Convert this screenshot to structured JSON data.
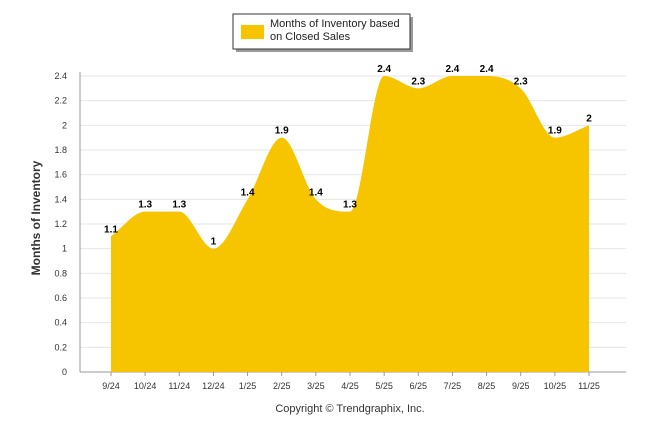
{
  "chart_data": {
    "type": "area",
    "categories": [
      "9/24",
      "10/24",
      "11/24",
      "12/24",
      "1/25",
      "2/25",
      "3/25",
      "4/25",
      "5/25",
      "6/25",
      "7/25",
      "8/25",
      "9/25",
      "10/25",
      "11/25"
    ],
    "series": [
      {
        "name": "Months of Inventory based on Closed Sales",
        "legend_lines": [
          "Months of Inventory based",
          "on Closed Sales"
        ],
        "values": [
          1.1,
          1.3,
          1.3,
          1.0,
          1.4,
          1.9,
          1.4,
          1.3,
          2.4,
          2.3,
          2.4,
          2.4,
          2.3,
          1.9,
          2.0
        ],
        "value_labels": [
          "1.1",
          "1.3",
          "1.3",
          "1",
          "1.4",
          "1.9",
          "1.4",
          "1.3",
          "2.4",
          "2.3",
          "2.4",
          "2.4",
          "2.3",
          "1.9",
          "2"
        ],
        "color": "#F7C400"
      }
    ],
    "ylabel": "Months of Inventory",
    "xlabel": "",
    "ylim": [
      0,
      2.4
    ],
    "yticks": [
      0,
      0.2,
      0.4,
      0.6,
      0.8,
      1,
      1.2,
      1.4,
      1.6,
      1.8,
      2,
      2.2,
      2.4
    ],
    "ytick_labels": [
      "0",
      "0.2",
      "0.4",
      "0.6",
      "0.8",
      "1",
      "1.2",
      "1.4",
      "1.6",
      "1.8",
      "2",
      "2.2",
      "2.4"
    ],
    "grid": true,
    "legend_position": "top-center"
  },
  "footer": {
    "copyright": "Copyright © Trendgraphix, Inc."
  },
  "colors": {
    "gridline": "#E6E6E6",
    "axis": "#999999"
  }
}
